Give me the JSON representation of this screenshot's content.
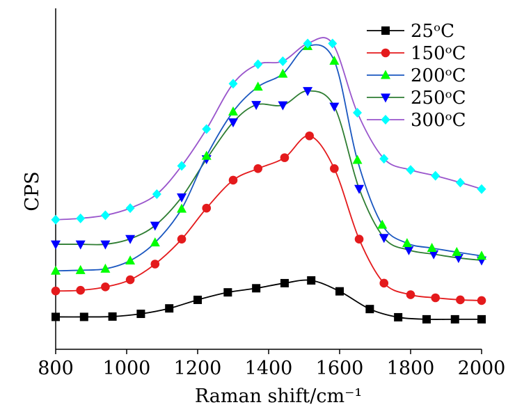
{
  "chart_data": {
    "type": "line",
    "xlabel": "Raman shift/cm⁻¹",
    "ylabel": "CPS",
    "xlim": [
      800,
      2000
    ],
    "ylim": [
      0,
      100
    ],
    "x_ticks": [
      800,
      1000,
      1200,
      1400,
      1600,
      1800,
      2000
    ],
    "x_tick_labels": [
      "800",
      "1000",
      "1200",
      "1400",
      "1600",
      "1800",
      "2000"
    ],
    "y_tick_labels_visible": false,
    "grid": false,
    "legend_position": "top-right",
    "series": [
      {
        "name": "25ᵒC",
        "color": "#000000",
        "marker": "square",
        "x": [
          800,
          880,
          960,
          1040,
          1120,
          1200,
          1285,
          1365,
          1445,
          1520,
          1600,
          1685,
          1765,
          1845,
          1925,
          2000
        ],
        "y": [
          9.5,
          9.5,
          9.6,
          10.4,
          12.0,
          14.5,
          16.7,
          17.9,
          19.4,
          20.2,
          17.0,
          11.8,
          9.4,
          8.8,
          8.8,
          8.8
        ]
      },
      {
        "name": "150ᵒC",
        "color": "#e41a1c",
        "marker": "circle",
        "x": [
          800,
          870,
          940,
          1010,
          1080,
          1155,
          1225,
          1300,
          1370,
          1445,
          1515,
          1585,
          1655,
          1725,
          1800,
          1870,
          1940,
          2000
        ],
        "y": [
          17.1,
          17.3,
          18.3,
          20.4,
          25.0,
          32.3,
          41.4,
          49.6,
          53.0,
          56.2,
          62.6,
          53.0,
          32.3,
          19.4,
          16.0,
          15.1,
          14.5,
          14.3
        ]
      },
      {
        "name": "200ᵒC",
        "color": "#00ff00",
        "line_color": "#1a57c0",
        "marker": "triangle-up",
        "x": [
          800,
          870,
          940,
          1010,
          1080,
          1155,
          1225,
          1300,
          1370,
          1440,
          1510,
          1585,
          1650,
          1720,
          1790,
          1860,
          1930,
          2000
        ],
        "y": [
          23.0,
          23.2,
          23.6,
          26.0,
          31.3,
          41.2,
          56.7,
          69.7,
          77.0,
          80.8,
          88.9,
          84.6,
          55.5,
          36.5,
          31.1,
          29.7,
          28.5,
          27.4
        ]
      },
      {
        "name": "250ᵒC",
        "color": "#0000ff",
        "line_color": "#2e7d32",
        "marker": "triangle-down",
        "x": [
          800,
          870,
          940,
          1010,
          1080,
          1155,
          1225,
          1300,
          1365,
          1440,
          1510,
          1585,
          1655,
          1725,
          1795,
          1865,
          1935,
          2000
        ],
        "y": [
          30.8,
          30.8,
          30.8,
          32.4,
          36.3,
          44.6,
          55.8,
          66.6,
          71.7,
          71.6,
          75.8,
          71.2,
          47.1,
          32.7,
          29.1,
          27.9,
          26.8,
          26.1
        ]
      },
      {
        "name": "300ᵒC",
        "color": "#00ffff",
        "line_color": "#9955cc",
        "marker": "diamond",
        "x": [
          800,
          870,
          940,
          1010,
          1085,
          1155,
          1225,
          1300,
          1370,
          1440,
          1510,
          1580,
          1650,
          1725,
          1800,
          1870,
          1940,
          2000
        ],
        "y": [
          38.0,
          38.4,
          39.3,
          41.4,
          45.5,
          53.8,
          64.6,
          77.9,
          83.6,
          84.5,
          89.7,
          89.7,
          69.4,
          55.9,
          52.6,
          50.9,
          48.9,
          47.0
        ]
      }
    ]
  }
}
